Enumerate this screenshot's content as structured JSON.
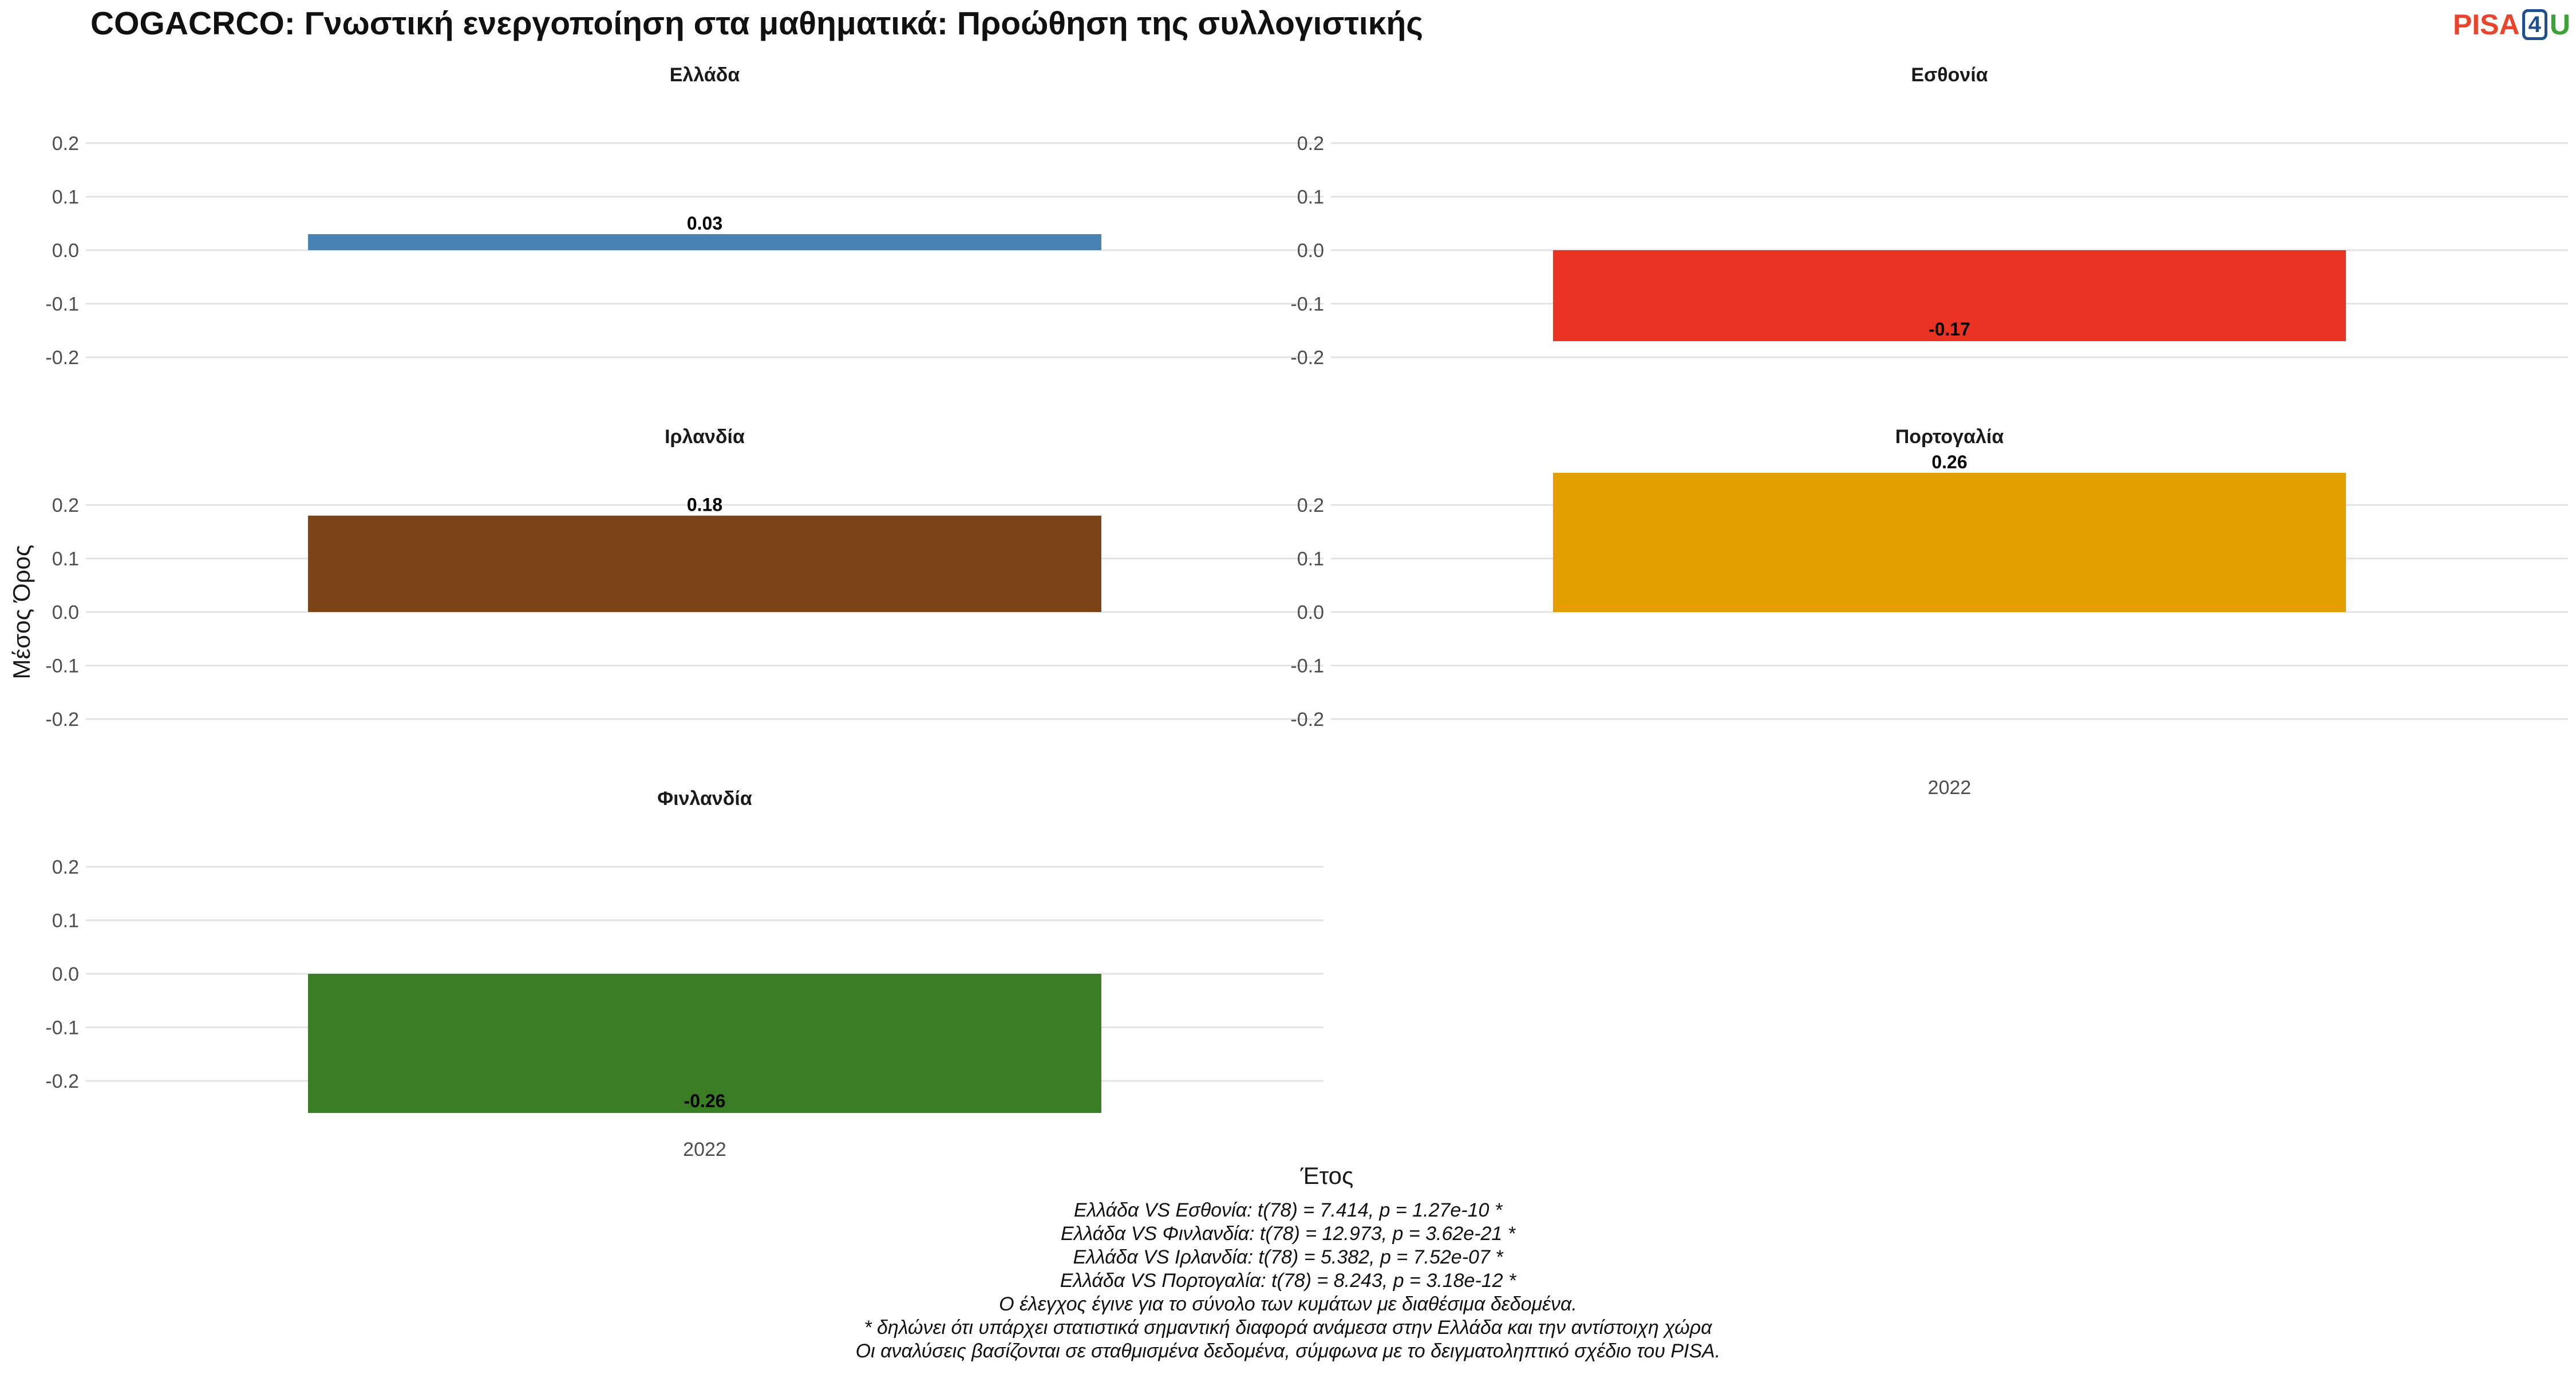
{
  "header": {
    "title": "COGACRCO: Γνωστική ενεργοποίηση στα μαθηματικά: Προώθηση της συλλογιστικής",
    "logo": {
      "part1": "PISA",
      "part2": "4",
      "part3": "U"
    }
  },
  "chart_data": {
    "type": "bar",
    "facets": [
      {
        "name": "Ελλάδα",
        "year": "2022",
        "value": 0.03,
        "label": "0.03",
        "color": "#4682b4",
        "show_xtick": false
      },
      {
        "name": "Εσθονία",
        "year": "2022",
        "value": -0.17,
        "label": "-0.17",
        "color": "#e93323",
        "show_xtick": false
      },
      {
        "name": "Ιρλανδία",
        "year": "2022",
        "value": 0.18,
        "label": "0.18",
        "color": "#7a4417",
        "show_xtick": false
      },
      {
        "name": "Πορτογαλία",
        "year": "2022",
        "value": 0.26,
        "label": "0.26",
        "color": "#e59e00",
        "show_xtick": true
      },
      {
        "name": "Φινλανδία",
        "year": "2022",
        "value": -0.26,
        "label": "-0.26",
        "color": "#3a7d24",
        "show_xtick": true
      }
    ],
    "y_ticks": [
      "0.2",
      "0.1",
      "0.0",
      "-0.1",
      "-0.2"
    ],
    "y_tick_values": [
      0.2,
      0.1,
      0.0,
      -0.1,
      -0.2
    ],
    "ylim": [
      -0.26,
      0.26
    ],
    "xlabel": "Έτος",
    "ylabel": "Μέσος Όρος",
    "grid": true,
    "legend": "none"
  },
  "notes": [
    "Ελλάδα VS Εσθονία: t(78) = 7.414, p = 1.27e-10 *",
    "Ελλάδα VS Φινλανδία: t(78) = 12.973, p = 3.62e-21 *",
    "Ελλάδα VS Ιρλανδία: t(78) = 5.382, p = 7.52e-07 *",
    "Ελλάδα VS Πορτογαλία: t(78) = 8.243, p = 3.18e-12 *",
    "Ο έλεγχος έγινε για το σύνολο των κυμάτων με διαθέσιμα δεδομένα.",
    "* δηλώνει ότι υπάρχει στατιστικά σημαντική διαφορά ανάμεσα στην Ελλάδα και την αντίστοιχη χώρα",
    "Οι αναλύσεις βασίζονται σε σταθμισμένα δεδομένα, σύμφωνα με το δειγματοληπτικό σχέδιο του PISA."
  ]
}
